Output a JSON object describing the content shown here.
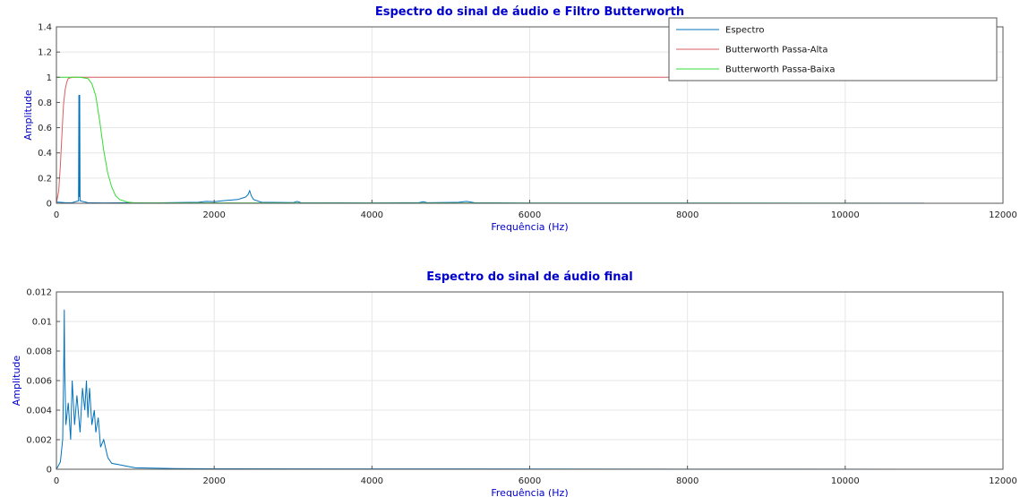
{
  "chart_data": [
    {
      "type": "line",
      "title": "Espectro do sinal de áudio e Filtro Butterworth",
      "xlabel": "Frequência (Hz)",
      "ylabel": "Amplitude",
      "xlim": [
        0,
        12000
      ],
      "ylim": [
        0,
        1.4
      ],
      "xticks": [
        0,
        2000,
        4000,
        6000,
        8000,
        10000,
        12000
      ],
      "yticks": [
        0,
        0.2,
        0.4,
        0.6,
        0.8,
        1,
        1.2,
        1.4
      ],
      "grid": true,
      "legend_position": "top-right",
      "series": [
        {
          "name": "Espectro",
          "color": "#0072bd",
          "x": [
            0,
            100,
            200,
            280,
            285,
            290,
            295,
            300,
            400,
            600,
            900,
            1200,
            1800,
            1900,
            2000,
            2100,
            2200,
            2300,
            2350,
            2400,
            2430,
            2450,
            2470,
            2500,
            2600,
            3000,
            3050,
            3100,
            4000,
            4600,
            4650,
            4700,
            5100,
            5200,
            5300,
            6000,
            11000
          ],
          "y": [
            0.01,
            0.006,
            0.004,
            0.02,
            0.86,
            0.05,
            0.86,
            0.02,
            0.004,
            0.003,
            0.004,
            0.003,
            0.008,
            0.015,
            0.012,
            0.02,
            0.025,
            0.03,
            0.04,
            0.05,
            0.07,
            0.1,
            0.06,
            0.03,
            0.008,
            0.005,
            0.015,
            0.004,
            0.003,
            0.006,
            0.012,
            0.004,
            0.008,
            0.015,
            0.004,
            0.002,
            0.001
          ]
        },
        {
          "name": "Butterworth Passa-Alta",
          "color": "#d95f5f",
          "x": [
            0,
            30,
            50,
            70,
            90,
            110,
            130,
            150,
            200,
            300,
            11000
          ],
          "y": [
            0,
            0.1,
            0.3,
            0.55,
            0.78,
            0.9,
            0.96,
            0.99,
            1,
            1,
            1
          ]
        },
        {
          "name": "Butterworth Passa-Baixa",
          "color": "#33dd33",
          "x": [
            0,
            300,
            400,
            450,
            500,
            550,
            600,
            650,
            700,
            750,
            800,
            900,
            1000,
            11000
          ],
          "y": [
            1,
            1,
            0.99,
            0.95,
            0.85,
            0.65,
            0.42,
            0.24,
            0.13,
            0.06,
            0.03,
            0.01,
            0.003,
            0
          ]
        }
      ]
    },
    {
      "type": "line",
      "title": "Espectro do sinal de áudio final",
      "xlabel": "Frequência (Hz)",
      "ylabel": "Amplitude",
      "xlim": [
        0,
        12000
      ],
      "ylim": [
        0,
        0.012
      ],
      "xticks": [
        0,
        2000,
        4000,
        6000,
        8000,
        10000,
        12000
      ],
      "yticks": [
        0,
        0.002,
        0.004,
        0.006,
        0.008,
        0.01,
        0.012
      ],
      "grid": true,
      "series": [
        {
          "color": "#0072bd",
          "x": [
            0,
            50,
            80,
            95,
            100,
            105,
            120,
            150,
            180,
            200,
            230,
            260,
            300,
            330,
            360,
            380,
            400,
            420,
            450,
            480,
            500,
            530,
            560,
            600,
            650,
            700,
            800,
            900,
            1000,
            1500,
            2000,
            11000
          ],
          "y": [
            0,
            0.0005,
            0.002,
            0.008,
            0.0108,
            0.007,
            0.003,
            0.0045,
            0.002,
            0.006,
            0.003,
            0.005,
            0.0025,
            0.0055,
            0.004,
            0.006,
            0.0035,
            0.0055,
            0.003,
            0.004,
            0.0025,
            0.0035,
            0.0015,
            0.002,
            0.0008,
            0.0004,
            0.0003,
            0.0002,
            0.0001,
            5e-05,
            3e-05,
            0
          ]
        }
      ]
    }
  ]
}
